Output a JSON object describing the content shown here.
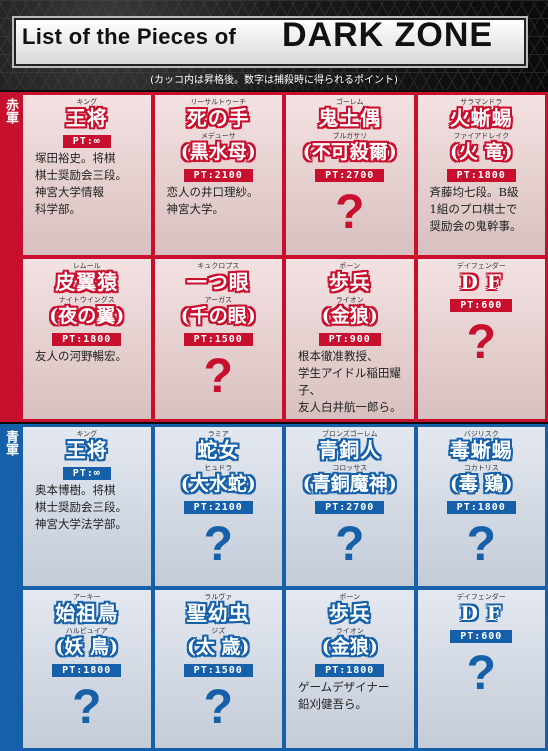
{
  "header": {
    "title_prefix": "List of the Pieces of",
    "title_main": "DARK ZONE",
    "subtitle": "(カッコ内は昇格後。数字は捕殺時に得られるポイント)"
  },
  "teams": {
    "red": {
      "label": "赤軍"
    },
    "blue": {
      "label": "青軍"
    }
  },
  "colors": {
    "red": "#c8102e",
    "blue": "#1560a8"
  },
  "red_pieces": [
    {
      "ruby": "キング",
      "name": "王将",
      "promoted_ruby": "",
      "promoted": "",
      "pt": "PT:∞",
      "desc": [
        "塚田裕史。将棋",
        "棋士奨励会三段。",
        "神宮大学情報",
        "科学部。"
      ],
      "unknown": false
    },
    {
      "ruby": "リーサルトゥーチ",
      "name": "死の手",
      "promoted_ruby": "メデューサ",
      "promoted": "(黒水母)",
      "pt": "PT:2100",
      "desc": [
        "恋人の井口理紗。",
        "神宮大学。"
      ],
      "unknown": false
    },
    {
      "ruby": "ゴーレム",
      "name": "鬼土偶",
      "promoted_ruby": "ブルガサリ",
      "promoted": "(不可殺爾)",
      "pt": "PT:2700",
      "desc": [],
      "unknown": true
    },
    {
      "ruby": "サラマンドラ",
      "name": "火蜥蜴",
      "promoted_ruby": "ファイアドレイク",
      "promoted": "(火 竜)",
      "pt": "PT:1800",
      "desc": [
        "斉藤均七段。B級",
        "1組のプロ棋士で",
        "奨励会の鬼幹事。"
      ],
      "unknown": false
    },
    {
      "ruby": "レムール",
      "name": "皮翼猿",
      "promoted_ruby": "ナイトウイングス",
      "promoted": "(夜の翼)",
      "pt": "PT:1800",
      "desc": [
        "友人の河野暢宏。"
      ],
      "unknown": false
    },
    {
      "ruby": "キュクロプス",
      "name": "一つ眼",
      "promoted_ruby": "アーガス",
      "promoted": "(千の眼)",
      "pt": "PT:1500",
      "desc": [],
      "unknown": true
    },
    {
      "ruby": "ポーン",
      "name": "歩兵",
      "promoted_ruby": "ライオン",
      "promoted": "(金狼)",
      "pt": "PT:900",
      "desc": [
        "根本徹准教授、",
        "学生アイドル稲田耀子、",
        "友人白井航一郎ら。"
      ],
      "unknown": false
    },
    {
      "ruby": "デイフェンダー",
      "name": "D F",
      "promoted_ruby": "",
      "promoted": "",
      "pt": "PT:600",
      "desc": [],
      "unknown": true
    }
  ],
  "blue_pieces": [
    {
      "ruby": "キング",
      "name": "王将",
      "promoted_ruby": "",
      "promoted": "",
      "pt": "PT:∞",
      "desc": [
        "奥本博樹。将棋",
        "棋士奨励会三段。",
        "神宮大学法学部。"
      ],
      "unknown": false
    },
    {
      "ruby": "ラミア",
      "name": "蛇女",
      "promoted_ruby": "ヒュドラ",
      "promoted": "(大水蛇)",
      "pt": "PT:2100",
      "desc": [],
      "unknown": true
    },
    {
      "ruby": "ブロンズゴーレム",
      "name": "青銅人",
      "promoted_ruby": "コロッサス",
      "promoted": "(青銅魔神)",
      "pt": "PT:2700",
      "desc": [],
      "unknown": true
    },
    {
      "ruby": "バジリスク",
      "name": "毒蜥蜴",
      "promoted_ruby": "コカトリス",
      "promoted": "(毒 鶏)",
      "pt": "PT:1800",
      "desc": [],
      "unknown": true
    },
    {
      "ruby": "アーキー",
      "name": "始祖鳥",
      "promoted_ruby": "ハルピュイア",
      "promoted": "(妖 鳥)",
      "pt": "PT:1800",
      "desc": [],
      "unknown": true
    },
    {
      "ruby": "ラルヴァ",
      "name": "聖幼虫",
      "promoted_ruby": "ジズ",
      "promoted": "(太 歳)",
      "pt": "PT:1500",
      "desc": [],
      "unknown": true
    },
    {
      "ruby": "ポーン",
      "name": "歩兵",
      "promoted_ruby": "ライオン",
      "promoted": "(金狼)",
      "pt": "PT:1800",
      "desc": [
        "ゲームデザイナー",
        "鉛刈健吾ら。"
      ],
      "unknown": false
    },
    {
      "ruby": "デイフェンダー",
      "name": "D F",
      "promoted_ruby": "",
      "promoted": "",
      "pt": "PT:600",
      "desc": [],
      "unknown": true
    }
  ],
  "unknown_mark": "?"
}
